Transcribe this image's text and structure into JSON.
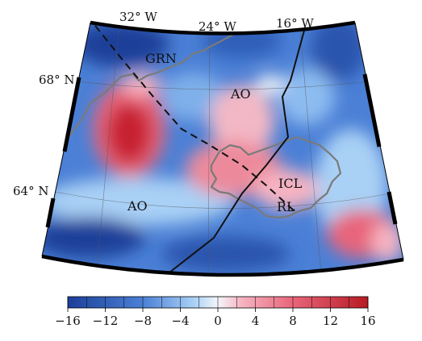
{
  "map": {
    "lon_labels": [
      {
        "text": "32° W"
      },
      {
        "text": "24° W"
      },
      {
        "text": "16° W"
      }
    ],
    "lat_labels": [
      {
        "text": "68° N"
      },
      {
        "text": "64° N"
      }
    ],
    "region_labels": [
      {
        "text": "GRN"
      },
      {
        "text": "AO"
      },
      {
        "text": "AO"
      },
      {
        "text": "ICL"
      },
      {
        "text": "RL"
      }
    ],
    "colors": {
      "neg_max": "#1c3f99",
      "neg_mid": "#4b80d6",
      "neg_low": "#a9d0f5",
      "zero": "#f3f6fa",
      "pos_low": "#f6b3c1",
      "pos_mid": "#e8657a",
      "pos_max": "#b81a23",
      "coastline": "#7a7a7a",
      "ridge_line": "#111111"
    }
  },
  "colorbar": {
    "ticks": [
      "−16",
      "−12",
      "−8",
      "−4",
      "0",
      "4",
      "8",
      "12",
      "16"
    ],
    "range": [
      -16,
      16
    ]
  }
}
